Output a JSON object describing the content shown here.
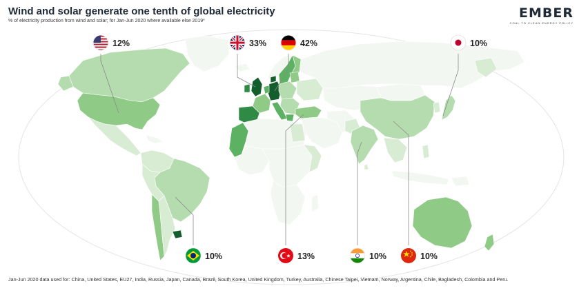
{
  "header": {
    "title": "Wind and solar generate one tenth of global electricity",
    "subtitle": "% of electricity production from wind and solar; for Jan-Jun 2020 where available else 2019*"
  },
  "logo": {
    "name": "EMBER",
    "tagline": "COAL TO CLEAN ENERGY POLICY"
  },
  "callouts": [
    {
      "country": "United States",
      "flag": "us-flag-icon",
      "value": "12%"
    },
    {
      "country": "United Kingdom",
      "flag": "uk-flag-icon",
      "value": "33%"
    },
    {
      "country": "Germany",
      "flag": "germany-flag-icon",
      "value": "42%"
    },
    {
      "country": "Japan",
      "flag": "japan-flag-icon",
      "value": "10%"
    },
    {
      "country": "Brazil",
      "flag": "brazil-flag-icon",
      "value": "10%"
    },
    {
      "country": "Turkey",
      "flag": "turkey-flag-icon",
      "value": "13%"
    },
    {
      "country": "India",
      "flag": "india-flag-icon",
      "value": "10%"
    },
    {
      "country": "China",
      "flag": "china-flag-icon",
      "value": "10%"
    }
  ],
  "colors": {
    "ocean": "#ffffff",
    "land_none": "#f3f7f2",
    "shade_1": "#d8ecd4",
    "shade_2": "#b5dcae",
    "shade_3": "#8fcb87",
    "shade_4": "#5db162",
    "shade_5": "#2f8a46",
    "shade_6": "#145e2e",
    "leader_line": "#8a8a8a"
  },
  "footer": {
    "note": "Jan-Jun 2020 data used for: China, United States, EU27, India, Russia, Japan, Canada, Brazil, South Korea, United Kingdom, Turkey, Australia, Chinese Taipei, Vietnam, Norway, Argentina, Chile, Bagladesh, Colombia and Peru."
  }
}
